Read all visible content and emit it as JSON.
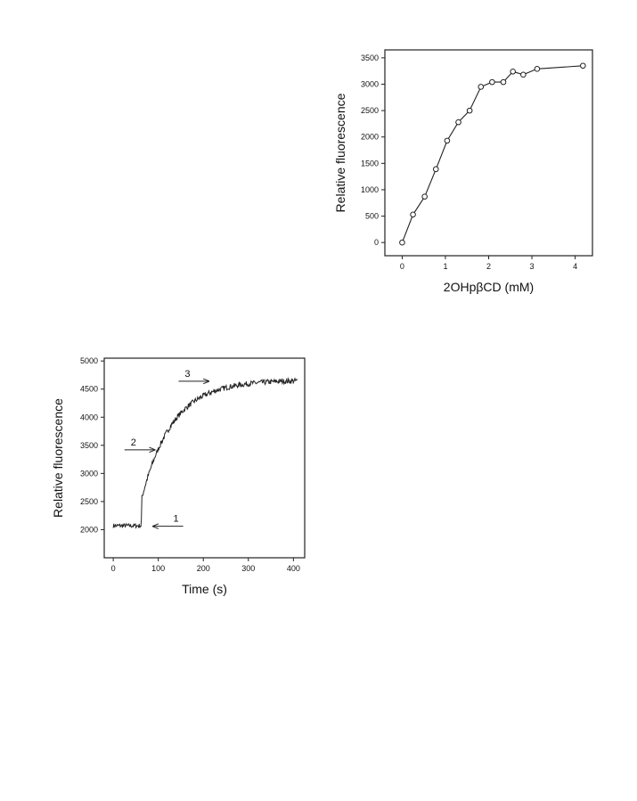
{
  "chart_data": [
    {
      "type": "line",
      "title": "",
      "xlabel": "2OHpβCD (mM)",
      "ylabel": "Relative fluorescence",
      "xlim": [
        -0.4,
        4.4
      ],
      "ylim": [
        -250,
        3650
      ],
      "x_ticks": [
        0,
        1,
        2,
        3,
        4
      ],
      "y_ticks": [
        0,
        500,
        1000,
        1500,
        2000,
        2500,
        3000,
        3500
      ],
      "marker": "open-circle",
      "grid": false,
      "series": [
        {
          "x": [
            0.0,
            0.25,
            0.52,
            0.78,
            1.04,
            1.3,
            1.56,
            1.82,
            2.08,
            2.34,
            2.56,
            2.8,
            3.12,
            4.18
          ],
          "y": [
            0,
            530,
            870,
            1390,
            1930,
            2280,
            2500,
            2950,
            3040,
            3040,
            3240,
            3180,
            3290,
            3350
          ]
        }
      ]
    },
    {
      "type": "line",
      "title": "",
      "xlabel": "Time (s)",
      "ylabel": "Relative fluorescence",
      "xlim": [
        -20,
        425
      ],
      "ylim": [
        1500,
        5050
      ],
      "x_ticks": [
        0,
        100,
        200,
        300,
        400
      ],
      "y_ticks": [
        2000,
        2500,
        3000,
        3500,
        4000,
        4500,
        5000
      ],
      "grid": false,
      "trace": {
        "baseline_level": 2070,
        "injection_time": 62,
        "plateau_level": 4660,
        "time_end": 410
      },
      "annotations": [
        {
          "text": "1",
          "x": 88,
          "y": 2060,
          "arrow": "left"
        },
        {
          "text": "2",
          "x": 25,
          "y": 3420,
          "arrow": "right"
        },
        {
          "text": "3",
          "x": 145,
          "y": 4640,
          "arrow": "right"
        }
      ]
    }
  ]
}
